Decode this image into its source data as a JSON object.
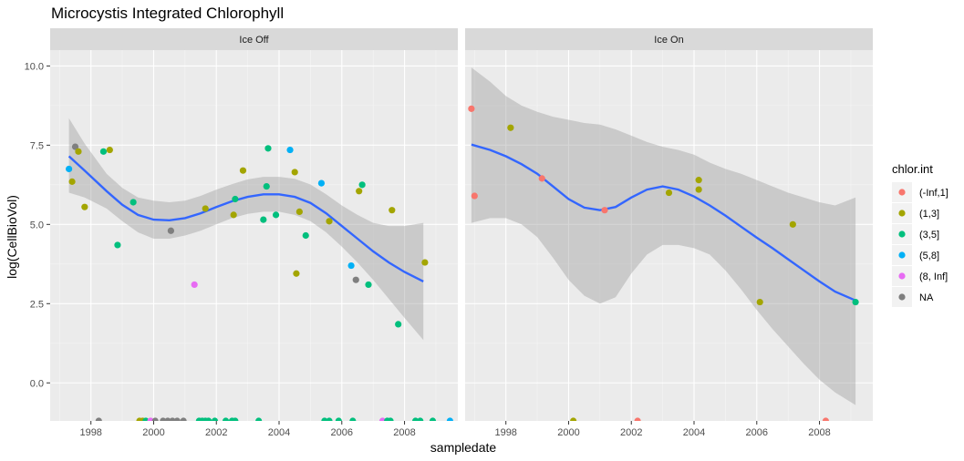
{
  "chart_data": {
    "type": "scatter",
    "title": "Microcystis Integrated Chlorophyll",
    "xlabel": "sampledate",
    "ylabel": "log(CellBioVol)",
    "xlim": [
      1996.7,
      2009.7
    ],
    "ylim": [
      -1.2,
      10.5
    ],
    "x_ticks": [
      1998,
      2000,
      2002,
      2004,
      2006,
      2008
    ],
    "y_ticks": [
      0,
      2.5,
      5,
      7.5,
      10
    ],
    "y_tick_labels": [
      "0.0",
      "2.5",
      "5.0",
      "7.5",
      "10.0"
    ],
    "grid": true,
    "legend_position": "right",
    "legend": {
      "title": "chlor.int",
      "entries": [
        {
          "label": "(-Inf,1]",
          "color": "#F8766D"
        },
        {
          "label": "(1,3]",
          "color": "#A3A500"
        },
        {
          "label": "(3,5]",
          "color": "#00BF7D"
        },
        {
          "label": "(5,8]",
          "color": "#00B0F6"
        },
        {
          "label": "(8, Inf]",
          "color": "#E76BF3"
        },
        {
          "label": "NA",
          "color": "#7F7F7F"
        }
      ]
    },
    "smooth_color": "#3366FF",
    "panels": [
      {
        "label": "Ice Off",
        "points": [
          {
            "x": 1997.3,
            "y": 6.75,
            "g": "(5,8]"
          },
          {
            "x": 1997.4,
            "y": 6.35,
            "g": "(1,3]"
          },
          {
            "x": 1997.5,
            "y": 7.45,
            "g": "NA"
          },
          {
            "x": 1997.6,
            "y": 7.3,
            "g": "(1,3]"
          },
          {
            "x": 1997.8,
            "y": 5.55,
            "g": "(1,3]"
          },
          {
            "x": 1998.4,
            "y": 7.3,
            "g": "(3,5]"
          },
          {
            "x": 1998.6,
            "y": 7.35,
            "g": "(1,3]"
          },
          {
            "x": 1998.85,
            "y": 4.35,
            "g": "(3,5]"
          },
          {
            "x": 1999.35,
            "y": 5.7,
            "g": "(3,5]"
          },
          {
            "x": 2000.55,
            "y": 4.8,
            "g": "NA"
          },
          {
            "x": 2001.3,
            "y": 3.1,
            "g": "(8, Inf]"
          },
          {
            "x": 2001.65,
            "y": 5.5,
            "g": "(1,3]"
          },
          {
            "x": 2002.55,
            "y": 5.3,
            "g": "(1,3]"
          },
          {
            "x": 2002.6,
            "y": 5.8,
            "g": "(3,5]"
          },
          {
            "x": 2002.85,
            "y": 6.7,
            "g": "(1,3]"
          },
          {
            "x": 2003.5,
            "y": 5.15,
            "g": "(3,5]"
          },
          {
            "x": 2003.6,
            "y": 6.2,
            "g": "(3,5]"
          },
          {
            "x": 2003.65,
            "y": 7.4,
            "g": "(3,5]"
          },
          {
            "x": 2003.9,
            "y": 5.3,
            "g": "(3,5]"
          },
          {
            "x": 2004.35,
            "y": 7.35,
            "g": "(5,8]"
          },
          {
            "x": 2004.5,
            "y": 6.65,
            "g": "(1,3]"
          },
          {
            "x": 2004.55,
            "y": 3.45,
            "g": "(1,3]"
          },
          {
            "x": 2004.65,
            "y": 5.4,
            "g": "(1,3]"
          },
          {
            "x": 2004.85,
            "y": 4.65,
            "g": "(3,5]"
          },
          {
            "x": 2005.35,
            "y": 6.3,
            "g": "(5,8]"
          },
          {
            "x": 2005.6,
            "y": 5.1,
            "g": "(1,3]"
          },
          {
            "x": 2006.3,
            "y": 3.7,
            "g": "(5,8]"
          },
          {
            "x": 2006.45,
            "y": 3.25,
            "g": "NA"
          },
          {
            "x": 2006.55,
            "y": 6.05,
            "g": "(1,3]"
          },
          {
            "x": 2006.65,
            "y": 6.25,
            "g": "(3,5]"
          },
          {
            "x": 2006.85,
            "y": 3.1,
            "g": "(3,5]"
          },
          {
            "x": 2007.6,
            "y": 5.45,
            "g": "(1,3]"
          },
          {
            "x": 2007.8,
            "y": 1.85,
            "g": "(3,5]"
          },
          {
            "x": 2008.65,
            "y": 3.8,
            "g": "(1,3]"
          },
          {
            "x": 1998.25,
            "y": -1.2,
            "g": "NA"
          },
          {
            "x": 1999.55,
            "y": -1.2,
            "g": "(1,3]"
          },
          {
            "x": 1999.65,
            "y": -1.2,
            "g": "(1,3]"
          },
          {
            "x": 1999.75,
            "y": -1.2,
            "g": "(3,5]"
          },
          {
            "x": 1999.9,
            "y": -1.2,
            "g": "(8, Inf]"
          },
          {
            "x": 2000.05,
            "y": -1.2,
            "g": "NA"
          },
          {
            "x": 2000.3,
            "y": -1.2,
            "g": "NA"
          },
          {
            "x": 2000.45,
            "y": -1.2,
            "g": "NA"
          },
          {
            "x": 2000.6,
            "y": -1.2,
            "g": "NA"
          },
          {
            "x": 2000.75,
            "y": -1.2,
            "g": "NA"
          },
          {
            "x": 2000.95,
            "y": -1.2,
            "g": "NA"
          },
          {
            "x": 2001.45,
            "y": -1.2,
            "g": "(3,5]"
          },
          {
            "x": 2001.55,
            "y": -1.2,
            "g": "(3,5]"
          },
          {
            "x": 2001.65,
            "y": -1.2,
            "g": "(3,5]"
          },
          {
            "x": 2001.75,
            "y": -1.2,
            "g": "(3,5]"
          },
          {
            "x": 2001.95,
            "y": -1.2,
            "g": "(3,5]"
          },
          {
            "x": 2002.3,
            "y": -1.2,
            "g": "(3,5]"
          },
          {
            "x": 2002.5,
            "y": -1.2,
            "g": "(3,5]"
          },
          {
            "x": 2002.6,
            "y": -1.2,
            "g": "(3,5]"
          },
          {
            "x": 2003.35,
            "y": -1.2,
            "g": "(3,5]"
          },
          {
            "x": 2005.45,
            "y": -1.2,
            "g": "(3,5]"
          },
          {
            "x": 2005.6,
            "y": -1.2,
            "g": "(3,5]"
          },
          {
            "x": 2005.9,
            "y": -1.2,
            "g": "(3,5]"
          },
          {
            "x": 2006.35,
            "y": -1.2,
            "g": "(3,5]"
          },
          {
            "x": 2007.3,
            "y": -1.2,
            "g": "(8, Inf]"
          },
          {
            "x": 2007.45,
            "y": -1.2,
            "g": "(3,5]"
          },
          {
            "x": 2007.55,
            "y": -1.2,
            "g": "(3,5]"
          },
          {
            "x": 2008.35,
            "y": -1.2,
            "g": "(3,5]"
          },
          {
            "x": 2008.5,
            "y": -1.2,
            "g": "(3,5]"
          },
          {
            "x": 2008.9,
            "y": -1.2,
            "g": "(3,5]"
          },
          {
            "x": 2009.45,
            "y": -1.2,
            "g": "(5,8]"
          }
        ],
        "smooth": [
          [
            1997.3,
            7.15
          ],
          [
            1997.8,
            6.7
          ],
          [
            1998.5,
            6.05
          ],
          [
            1999.0,
            5.62
          ],
          [
            1999.5,
            5.3
          ],
          [
            2000.0,
            5.15
          ],
          [
            2000.5,
            5.13
          ],
          [
            2001.0,
            5.2
          ],
          [
            2001.5,
            5.35
          ],
          [
            2002.0,
            5.55
          ],
          [
            2002.5,
            5.73
          ],
          [
            2003.0,
            5.87
          ],
          [
            2003.5,
            5.95
          ],
          [
            2004.0,
            5.95
          ],
          [
            2004.5,
            5.87
          ],
          [
            2005.0,
            5.68
          ],
          [
            2005.5,
            5.35
          ],
          [
            2006.0,
            4.95
          ],
          [
            2006.5,
            4.55
          ],
          [
            2007.0,
            4.15
          ],
          [
            2007.5,
            3.8
          ],
          [
            2008.0,
            3.5
          ],
          [
            2008.6,
            3.2
          ]
        ],
        "band": [
          [
            1997.3,
            6.0,
            8.35
          ],
          [
            1997.8,
            5.85,
            7.55
          ],
          [
            1998.5,
            5.5,
            6.6
          ],
          [
            1999.0,
            5.1,
            6.15
          ],
          [
            1999.5,
            4.75,
            5.85
          ],
          [
            2000.0,
            4.55,
            5.75
          ],
          [
            2000.5,
            4.55,
            5.7
          ],
          [
            2001.0,
            4.65,
            5.75
          ],
          [
            2001.5,
            4.8,
            5.9
          ],
          [
            2002.0,
            5.0,
            6.1
          ],
          [
            2002.5,
            5.2,
            6.27
          ],
          [
            2003.0,
            5.33,
            6.42
          ],
          [
            2003.5,
            5.4,
            6.5
          ],
          [
            2004.0,
            5.4,
            6.5
          ],
          [
            2004.5,
            5.3,
            6.44
          ],
          [
            2005.0,
            5.1,
            6.26
          ],
          [
            2005.5,
            4.75,
            5.95
          ],
          [
            2006.0,
            4.3,
            5.6
          ],
          [
            2006.5,
            3.8,
            5.3
          ],
          [
            2007.0,
            3.25,
            5.05
          ],
          [
            2007.5,
            2.65,
            4.95
          ],
          [
            2008.0,
            2.05,
            4.95
          ],
          [
            2008.6,
            1.35,
            5.05
          ]
        ]
      },
      {
        "label": "Ice On",
        "points": [
          {
            "x": 1996.9,
            "y": 8.65,
            "g": "(-Inf,1]"
          },
          {
            "x": 1997.0,
            "y": 5.9,
            "g": "(-Inf,1]"
          },
          {
            "x": 1998.15,
            "y": 8.05,
            "g": "(1,3]"
          },
          {
            "x": 1999.15,
            "y": 6.45,
            "g": "(-Inf,1]"
          },
          {
            "x": 2001.15,
            "y": 5.45,
            "g": "(-Inf,1]"
          },
          {
            "x": 2003.2,
            "y": 6.0,
            "g": "(1,3]"
          },
          {
            "x": 2004.15,
            "y": 6.1,
            "g": "(1,3]"
          },
          {
            "x": 2004.15,
            "y": 6.4,
            "g": "(1,3]"
          },
          {
            "x": 2006.1,
            "y": 2.55,
            "g": "(1,3]"
          },
          {
            "x": 2007.15,
            "y": 5.0,
            "g": "(1,3]"
          },
          {
            "x": 2009.15,
            "y": 2.55,
            "g": "(3,5]"
          },
          {
            "x": 2000.15,
            "y": -1.2,
            "g": "(1,3]"
          },
          {
            "x": 2002.2,
            "y": -1.2,
            "g": "(-Inf,1]"
          },
          {
            "x": 2008.2,
            "y": -1.2,
            "g": "(-Inf,1]"
          }
        ],
        "smooth": [
          [
            1996.9,
            7.52
          ],
          [
            1997.5,
            7.35
          ],
          [
            1998.0,
            7.15
          ],
          [
            1998.5,
            6.9
          ],
          [
            1999.0,
            6.6
          ],
          [
            1999.5,
            6.2
          ],
          [
            2000.0,
            5.8
          ],
          [
            2000.5,
            5.53
          ],
          [
            2001.0,
            5.45
          ],
          [
            2001.5,
            5.55
          ],
          [
            2002.0,
            5.85
          ],
          [
            2002.5,
            6.1
          ],
          [
            2003.0,
            6.2
          ],
          [
            2003.5,
            6.1
          ],
          [
            2004.0,
            5.88
          ],
          [
            2004.5,
            5.6
          ],
          [
            2005.0,
            5.28
          ],
          [
            2005.5,
            4.93
          ],
          [
            2006.0,
            4.58
          ],
          [
            2006.5,
            4.25
          ],
          [
            2007.0,
            3.9
          ],
          [
            2007.5,
            3.55
          ],
          [
            2008.0,
            3.2
          ],
          [
            2008.5,
            2.88
          ],
          [
            2009.15,
            2.6
          ]
        ],
        "band": [
          [
            1996.9,
            5.05,
            9.95
          ],
          [
            1997.5,
            5.2,
            9.5
          ],
          [
            1998.0,
            5.2,
            9.05
          ],
          [
            1998.5,
            5.0,
            8.75
          ],
          [
            1999.0,
            4.6,
            8.55
          ],
          [
            1999.5,
            3.95,
            8.4
          ],
          [
            2000.0,
            3.25,
            8.3
          ],
          [
            2000.5,
            2.75,
            8.2
          ],
          [
            2001.0,
            2.5,
            8.15
          ],
          [
            2001.5,
            2.7,
            8.0
          ],
          [
            2002.0,
            3.45,
            7.8
          ],
          [
            2002.5,
            4.05,
            7.6
          ],
          [
            2003.0,
            4.35,
            7.45
          ],
          [
            2003.5,
            4.35,
            7.35
          ],
          [
            2004.0,
            4.25,
            7.2
          ],
          [
            2004.5,
            4.05,
            6.95
          ],
          [
            2005.0,
            3.55,
            6.75
          ],
          [
            2005.5,
            2.95,
            6.6
          ],
          [
            2006.0,
            2.3,
            6.4
          ],
          [
            2006.5,
            1.7,
            6.2
          ],
          [
            2007.0,
            1.15,
            6.0
          ],
          [
            2007.5,
            0.6,
            5.85
          ],
          [
            2008.0,
            0.1,
            5.7
          ],
          [
            2008.5,
            -0.3,
            5.6
          ],
          [
            2009.15,
            -0.7,
            5.85
          ]
        ]
      }
    ]
  }
}
